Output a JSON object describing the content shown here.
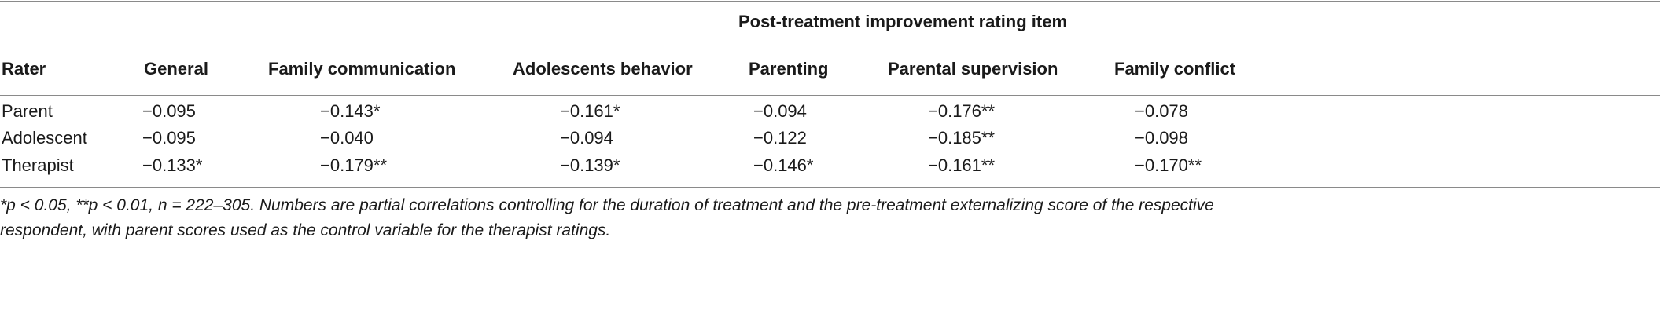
{
  "table": {
    "spanner": "Post-treatment improvement rating item",
    "columns": [
      "Rater",
      "General",
      "Family communication",
      "Adolescents behavior",
      "Parenting",
      "Parental supervision",
      "Family conflict"
    ],
    "rows": [
      {
        "rater": "Parent",
        "values": [
          "−0.095",
          "−0.143*",
          "−0.161*",
          "−0.094",
          "−0.176**",
          "−0.078"
        ]
      },
      {
        "rater": "Adolescent",
        "values": [
          "−0.095",
          "−0.040",
          "−0.094",
          "−0.122",
          "−0.185**",
          "−0.098"
        ]
      },
      {
        "rater": "Therapist",
        "values": [
          "−0.133*",
          "−0.179**",
          "−0.139*",
          "−0.146*",
          "−0.161**",
          "−0.170**"
        ]
      }
    ],
    "footnote_line1": "*p < 0.05, **p < 0.01, n = 222–305. Numbers are partial correlations controlling for the duration of treatment and the pre-treatment externalizing score of the respective",
    "footnote_line2": "respondent, with parent scores used as the control variable for the therapist ratings."
  }
}
